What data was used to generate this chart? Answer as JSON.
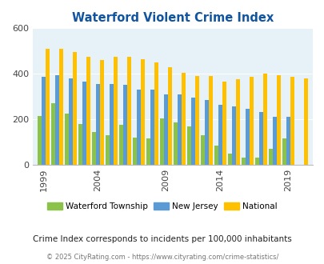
{
  "title": "Waterford Violent Crime Index",
  "actual_years": [
    1999,
    2000,
    2001,
    2002,
    2003,
    2004,
    2005,
    2006,
    2007,
    2008,
    2009,
    2010,
    2011,
    2012,
    2013,
    2014,
    2015,
    2016,
    2017,
    2018,
    2019,
    2020,
    2021
  ],
  "waterford": [
    215,
    270,
    225,
    0,
    180,
    145,
    130,
    175,
    120,
    115,
    205,
    0,
    185,
    170,
    130,
    85,
    50,
    30,
    30,
    70,
    115,
    0,
    0
  ],
  "new_jersey": [
    385,
    395,
    380,
    0,
    365,
    355,
    355,
    350,
    330,
    330,
    310,
    0,
    310,
    295,
    285,
    265,
    255,
    245,
    230,
    210,
    210,
    0,
    0
  ],
  "national": [
    510,
    510,
    495,
    0,
    475,
    460,
    475,
    475,
    465,
    450,
    430,
    0,
    405,
    390,
    390,
    365,
    375,
    385,
    400,
    395,
    385,
    380,
    0
  ],
  "colors": {
    "waterford": "#8bc34a",
    "new_jersey": "#5b9bd5",
    "national": "#ffc000"
  },
  "ylim": [
    0,
    600
  ],
  "yticks": [
    0,
    200,
    400,
    600
  ],
  "xtick_years": [
    1999,
    2004,
    2009,
    2014,
    2019
  ],
  "bg_color": "#e6f2f7",
  "subtitle": "Crime Index corresponds to incidents per 100,000 inhabitants",
  "footer": "© 2025 CityRating.com - https://www.cityrating.com/crime-statistics/",
  "title_color": "#1155a0",
  "subtitle_color": "#222222",
  "footer_color": "#777777"
}
